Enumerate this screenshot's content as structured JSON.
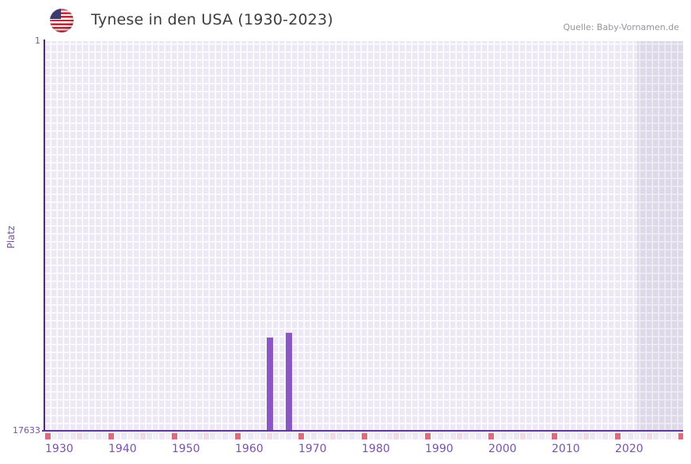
{
  "header": {
    "title": "Tynese in den USA (1930-2023)",
    "source": "Quelle: Baby-Vornamen.de",
    "flag_icon": "us-flag-icon"
  },
  "chart_data": {
    "type": "bar",
    "title": "Tynese in den USA (1930-2023)",
    "source": "Quelle: Baby-Vornamen.de",
    "xlabel": "",
    "ylabel": "Platz",
    "y_axis": {
      "top_tick_label": "1",
      "bottom_tick_label": "17633",
      "min": 1,
      "max": 17633,
      "inverted": true
    },
    "x_axis": {
      "start_year": 1930,
      "end_year": 2030,
      "last_data_year": 2023,
      "tick_labels": [
        "1930",
        "1940",
        "1950",
        "1960",
        "1970",
        "1980",
        "1990",
        "2000",
        "2010",
        "2020"
      ],
      "decade_marker_years": [
        1930,
        1940,
        1950,
        1960,
        1970,
        1980,
        1990,
        2000,
        2010,
        2020,
        2030
      ],
      "half_decade_marker_years": [
        1935,
        1945,
        1955,
        1965,
        1975,
        1985,
        1995,
        2005,
        2015,
        2025
      ]
    },
    "series": [
      {
        "name": "Platz",
        "points": [
          {
            "year": 1965,
            "rank": 13430
          },
          {
            "year": 1968,
            "rank": 13215
          }
        ]
      }
    ],
    "no_data_region": {
      "from_year": 2024,
      "to_year": 2030
    },
    "grid": true,
    "legend": false
  },
  "colors": {
    "bar": "#8b57c4",
    "grid_cell": "#ece8f6",
    "axis": "#4b2b7f",
    "tick_text": "#7b51ad",
    "decade_marker": "#e2697c",
    "half_decade_marker": "#f2d9e2",
    "no_data_overlay": "rgba(95,85,125,0.10)",
    "title_text": "#3d3d3d",
    "source_text": "#98939e",
    "flag_red": "#c0293a",
    "flag_blue": "#3c3b6e"
  }
}
